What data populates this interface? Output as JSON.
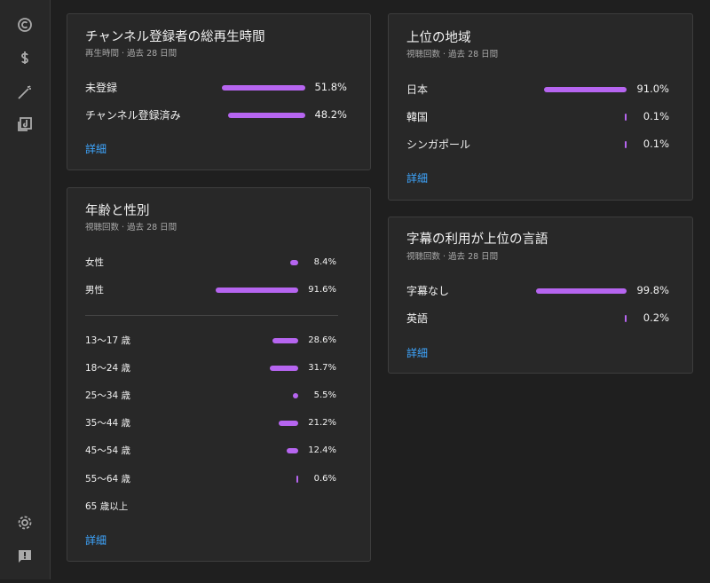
{
  "cards": [
    {
      "title": "チャンネル登録者の総再生時間",
      "subtitle": "再生時間 · 過去 28 日間",
      "sections": [
        {
          "rows": [
            {
              "label": "未登録",
              "value": 51.8,
              "value_label": "51.8%"
            },
            {
              "label": "チャンネル登録済み",
              "value": 48.2,
              "value_label": "48.2%"
            }
          ]
        }
      ],
      "link": "詳細"
    },
    {
      "title": "年齢と性別",
      "subtitle": "視聴回数 · 過去 28 日間",
      "sections": [
        {
          "rows": [
            {
              "label": "女性",
              "value": 8.4,
              "value_label": "8.4%"
            },
            {
              "label": "男性",
              "value": 91.6,
              "value_label": "91.6%"
            }
          ]
        },
        {
          "rows": [
            {
              "label": "13〜17 歳",
              "value": 28.6,
              "value_label": "28.6%"
            },
            {
              "label": "18〜24 歳",
              "value": 31.7,
              "value_label": "31.7%"
            },
            {
              "label": "25〜34 歳",
              "value": 5.5,
              "value_label": "5.5%"
            },
            {
              "label": "35〜44 歳",
              "value": 21.2,
              "value_label": "21.2%"
            },
            {
              "label": "45〜54 歳",
              "value": 12.4,
              "value_label": "12.4%"
            },
            {
              "label": "55〜64 歳",
              "value": 0.6,
              "value_label": "0.6%"
            },
            {
              "label": "65 歳以上"
            }
          ]
        }
      ],
      "link": "詳細"
    },
    {
      "title": "上位の地域",
      "subtitle": "視聴回数 · 過去 28 日間",
      "sections": [
        {
          "rows": [
            {
              "label": "日本",
              "value": 91.0,
              "value_label": "91.0%"
            },
            {
              "label": "韓国",
              "value": 0.1,
              "value_label": "0.1%"
            },
            {
              "label": "シンガポール",
              "value": 0.1,
              "value_label": "0.1%"
            }
          ]
        }
      ],
      "link": "詳細"
    },
    {
      "title": "字幕の利用が上位の言語",
      "subtitle": "視聴回数 · 過去 28 日間",
      "sections": [
        {
          "rows": [
            {
              "label": "字幕なし",
              "value": 99.8,
              "value_label": "99.8%"
            },
            {
              "label": "英語",
              "value": 0.2,
              "value_label": "0.2%"
            }
          ]
        }
      ],
      "link": "詳細"
    }
  ]
}
